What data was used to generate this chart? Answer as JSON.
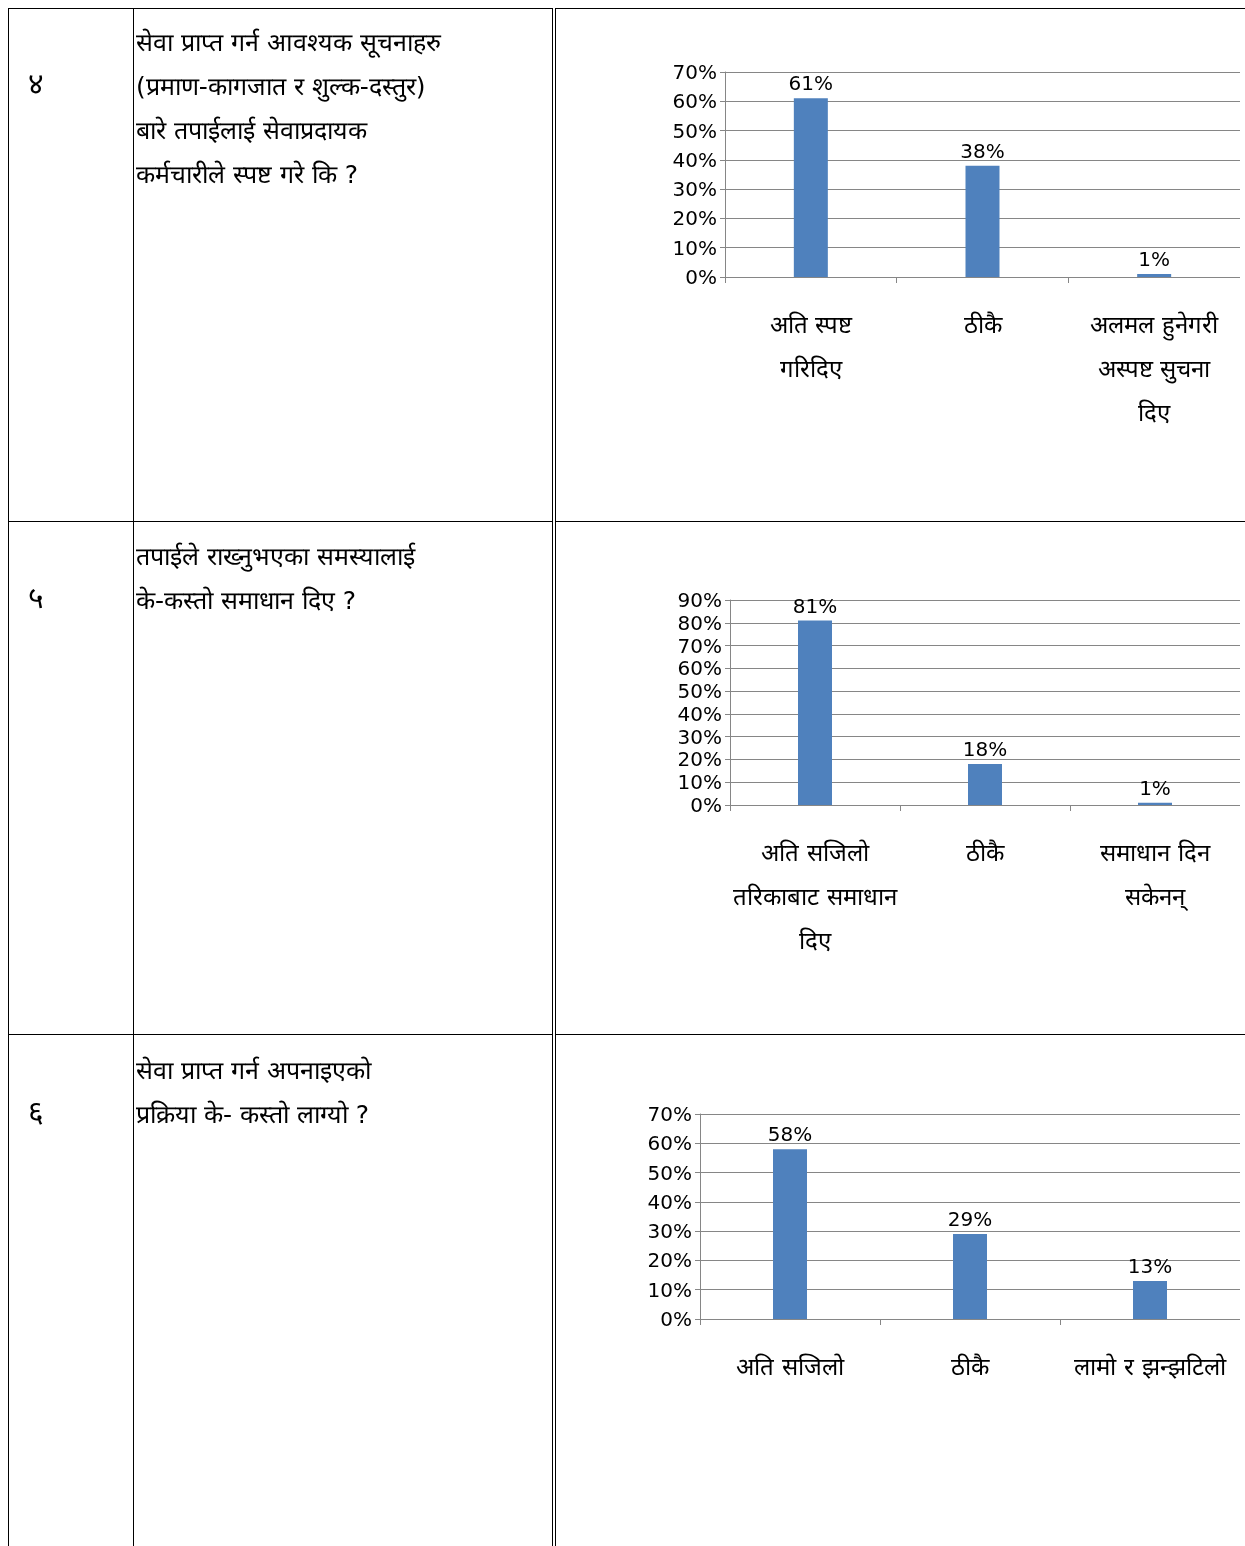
{
  "chart_data": [
    {
      "type": "bar",
      "annotations": [
        "४",
        "सेवा प्राप्त गर्न आवश्यक सूचनाहरु (प्रमाण-कागजात र शुल्क-दस्तुर) बारे तपाईलाई सेवाप्रदायक कर्मचारीले स्पष्ट गरे कि ?"
      ],
      "categories": [
        "अति स्पष्ट गरिदिए",
        "ठीकै",
        "अलमल हुनेगरी अस्पष्ट सुचना दिए"
      ],
      "values": [
        61,
        38,
        1
      ],
      "value_labels": [
        "61%",
        "38%",
        "1%"
      ],
      "color": "#4f81bd",
      "ylim": [
        0,
        70
      ],
      "yticks": [
        {
          "value": 0,
          "label": "0%"
        },
        {
          "value": 10,
          "label": "10%"
        },
        {
          "value": 20,
          "label": "20%"
        },
        {
          "value": 30,
          "label": "30%"
        },
        {
          "value": 40,
          "label": "40%"
        },
        {
          "value": 50,
          "label": "50%"
        },
        {
          "value": 60,
          "label": "60%"
        },
        {
          "value": 70,
          "label": "70%"
        }
      ],
      "grid": "y"
    },
    {
      "type": "bar",
      "annotations": [
        "५",
        "तपाईले राख्नुभएका समस्यालाई के-कस्तो समाधान दिए ?"
      ],
      "categories": [
        "अति सजिलो तरिकाबाट समाधान दिए",
        "ठीकै",
        "समाधान दिन सकेनन्"
      ],
      "values": [
        81,
        18,
        1
      ],
      "value_labels": [
        "81%",
        "18%",
        "1%"
      ],
      "color": "#4f81bd",
      "ylim": [
        0,
        90
      ],
      "yticks": [
        {
          "value": 0,
          "label": "0%"
        },
        {
          "value": 10,
          "label": "10%"
        },
        {
          "value": 20,
          "label": "20%"
        },
        {
          "value": 30,
          "label": "30%"
        },
        {
          "value": 40,
          "label": "40%"
        },
        {
          "value": 50,
          "label": "50%"
        },
        {
          "value": 60,
          "label": "60%"
        },
        {
          "value": 70,
          "label": "70%"
        },
        {
          "value": 80,
          "label": "80%"
        },
        {
          "value": 90,
          "label": "90%"
        }
      ],
      "grid": "y"
    },
    {
      "type": "bar",
      "annotations": [
        "६",
        "सेवा प्राप्त गर्न अपनाइएको प्रक्रिया के- कस्तो लाग्यो ?"
      ],
      "categories": [
        "अति सजिलो",
        "ठीकै",
        "लामो र झन्झटिलो"
      ],
      "values": [
        58,
        29,
        13
      ],
      "value_labels": [
        "58%",
        "29%",
        "13%"
      ],
      "color": "#4f81bd",
      "ylim": [
        0,
        70
      ],
      "yticks": [
        {
          "value": 0,
          "label": "0%"
        },
        {
          "value": 10,
          "label": "10%"
        },
        {
          "value": 20,
          "label": "20%"
        },
        {
          "value": 30,
          "label": "30%"
        },
        {
          "value": 40,
          "label": "40%"
        },
        {
          "value": 50,
          "label": "50%"
        },
        {
          "value": 60,
          "label": "60%"
        },
        {
          "value": 70,
          "label": "70%"
        }
      ],
      "grid": "y"
    }
  ]
}
